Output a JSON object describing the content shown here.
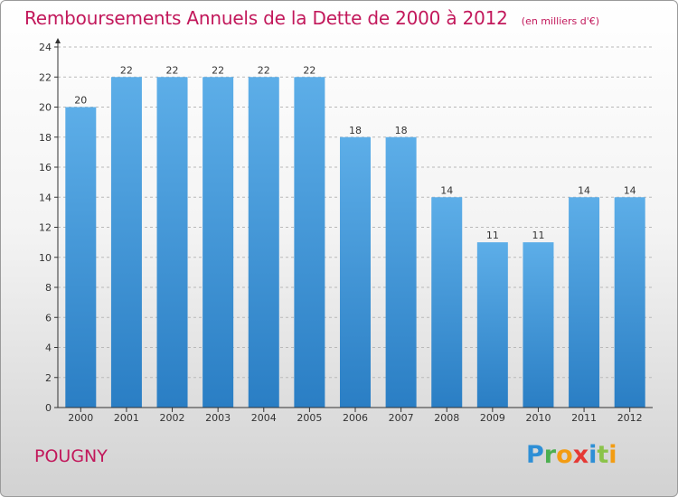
{
  "header": {
    "title": "Remboursements Annuels de la Dette de 2000 à 2012",
    "subtitle": "(en milliers d'€)"
  },
  "commune": "POUGNY",
  "logo": {
    "text": "Proxiti",
    "letters": [
      {
        "char": "P",
        "color": "#2e8fd6"
      },
      {
        "char": "r",
        "color": "#4caf50"
      },
      {
        "char": "o",
        "color": "#f39c12"
      },
      {
        "char": "x",
        "color": "#e53935"
      },
      {
        "char": "i",
        "color": "#2e8fd6"
      },
      {
        "char": "t",
        "color": "#8bc34a"
      },
      {
        "char": "i",
        "color": "#f39c12"
      }
    ]
  },
  "chart_data": {
    "type": "bar",
    "title": "Remboursements Annuels de la Dette de 2000 à 2012",
    "subtitle": "(en milliers d'€)",
    "xlabel": "",
    "ylabel": "",
    "categories": [
      "2000",
      "2001",
      "2002",
      "2003",
      "2004",
      "2005",
      "2006",
      "2007",
      "2008",
      "2009",
      "2010",
      "2011",
      "2012"
    ],
    "values": [
      20,
      22,
      22,
      22,
      22,
      22,
      18,
      18,
      14,
      11,
      11,
      14,
      14
    ],
    "data_labels": [
      "20",
      "22",
      "22",
      "22",
      "22",
      "22",
      "18",
      "18",
      "14",
      "11",
      "11",
      "14",
      "14"
    ],
    "ylim": [
      0,
      24
    ],
    "yticks": [
      0,
      2,
      4,
      6,
      8,
      10,
      12,
      14,
      16,
      18,
      20,
      22,
      24
    ],
    "grid": true,
    "legend": "none",
    "colors": {
      "bar_top": "#5daee8",
      "bar_bottom": "#2a7ec4",
      "grid": "#b9b9b9",
      "axis": "#333333",
      "text": "#333333",
      "title": "#c2185b"
    }
  }
}
